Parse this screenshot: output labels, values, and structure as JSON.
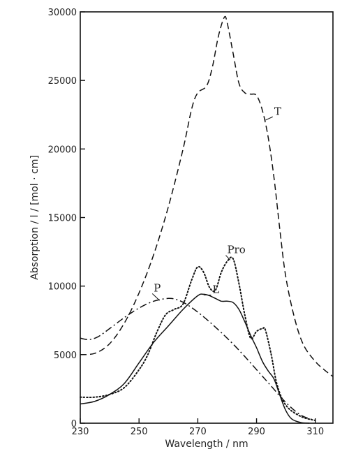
{
  "chart_data": {
    "type": "line",
    "title": "",
    "xlabel": "Wavelength / nm",
    "ylabel": "Absorption / l / [mol · cm]",
    "xlim": [
      230,
      316
    ],
    "ylim": [
      0,
      30000
    ],
    "xticks": [
      230,
      250,
      270,
      290,
      310
    ],
    "yticks": [
      0,
      5000,
      10000,
      15000,
      20000,
      25000,
      30000
    ],
    "xtick_labels": [
      "230",
      "250",
      "270",
      "290",
      "310"
    ],
    "ytick_labels": [
      "0",
      "5000",
      "10000",
      "15000",
      "20000",
      "25000",
      "30000"
    ],
    "grid": false,
    "legend": "none",
    "series": [
      {
        "name": "T",
        "style": "dashed",
        "x": [
          230,
          235,
          240,
          245,
          250,
          255,
          260,
          265,
          268,
          270,
          273,
          275,
          277,
          279,
          280,
          282,
          284,
          286,
          288,
          290,
          292,
          294,
          296,
          298,
          300,
          303,
          306,
          310,
          313,
          316
        ],
        "y": [
          5000,
          5100,
          5800,
          7300,
          9500,
          12300,
          15800,
          20000,
          23000,
          24100,
          24600,
          26000,
          28200,
          29600,
          29200,
          27000,
          24800,
          24100,
          24000,
          23900,
          22800,
          20800,
          17800,
          14000,
          10600,
          7600,
          5700,
          4500,
          3900,
          3400
        ]
      },
      {
        "name": "P",
        "style": "dash-dot",
        "x": [
          230,
          233,
          236,
          240,
          245,
          250,
          255,
          260,
          263,
          266,
          270,
          275,
          280,
          285,
          290,
          295,
          300,
          305,
          310
        ],
        "y": [
          6200,
          6100,
          6300,
          6900,
          7700,
          8400,
          8900,
          9100,
          9000,
          8700,
          8100,
          7200,
          6200,
          5100,
          3900,
          2700,
          1500,
          600,
          200
        ]
      },
      {
        "name": "Pro",
        "style": "dotted",
        "x": [
          230,
          235,
          240,
          245,
          250,
          253,
          256,
          259,
          262,
          265,
          268,
          270,
          272,
          274,
          276,
          278,
          280,
          282,
          284,
          286,
          288,
          290,
          292,
          293,
          295,
          297,
          300,
          305,
          310
        ],
        "y": [
          1900,
          1900,
          2100,
          2600,
          3900,
          5000,
          6600,
          7900,
          8300,
          8700,
          10500,
          11400,
          11000,
          9900,
          9700,
          11000,
          11800,
          12000,
          10200,
          7900,
          6200,
          6700,
          6900,
          6800,
          5000,
          2800,
          1300,
          500,
          200
        ]
      },
      {
        "name": "L",
        "style": "solid",
        "x": [
          230,
          235,
          240,
          245,
          250,
          255,
          260,
          265,
          270,
          272,
          274,
          276,
          278,
          280,
          282,
          284,
          286,
          288,
          290,
          292,
          294,
          296,
          298,
          300,
          302,
          305,
          308
        ],
        "y": [
          1400,
          1600,
          2100,
          2900,
          4400,
          5900,
          7100,
          8300,
          9300,
          9400,
          9300,
          9100,
          8900,
          8900,
          8800,
          8300,
          7400,
          6400,
          5500,
          4500,
          3800,
          3200,
          2000,
          900,
          300,
          50,
          0
        ]
      }
    ],
    "annotations": [
      {
        "text": "T",
        "x": 296,
        "y": 22500,
        "leader_to": [
          293,
          22100
        ]
      },
      {
        "text": "P",
        "x": 255,
        "y": 9600,
        "leader_to": [
          257,
          8950
        ]
      },
      {
        "text": "Pro",
        "x": 280,
        "y": 12400,
        "leader_to": [
          281,
          11900
        ]
      },
      {
        "text": "L",
        "x": 275,
        "y": 9500,
        "leader_to": [
          272,
          9350
        ]
      }
    ]
  }
}
